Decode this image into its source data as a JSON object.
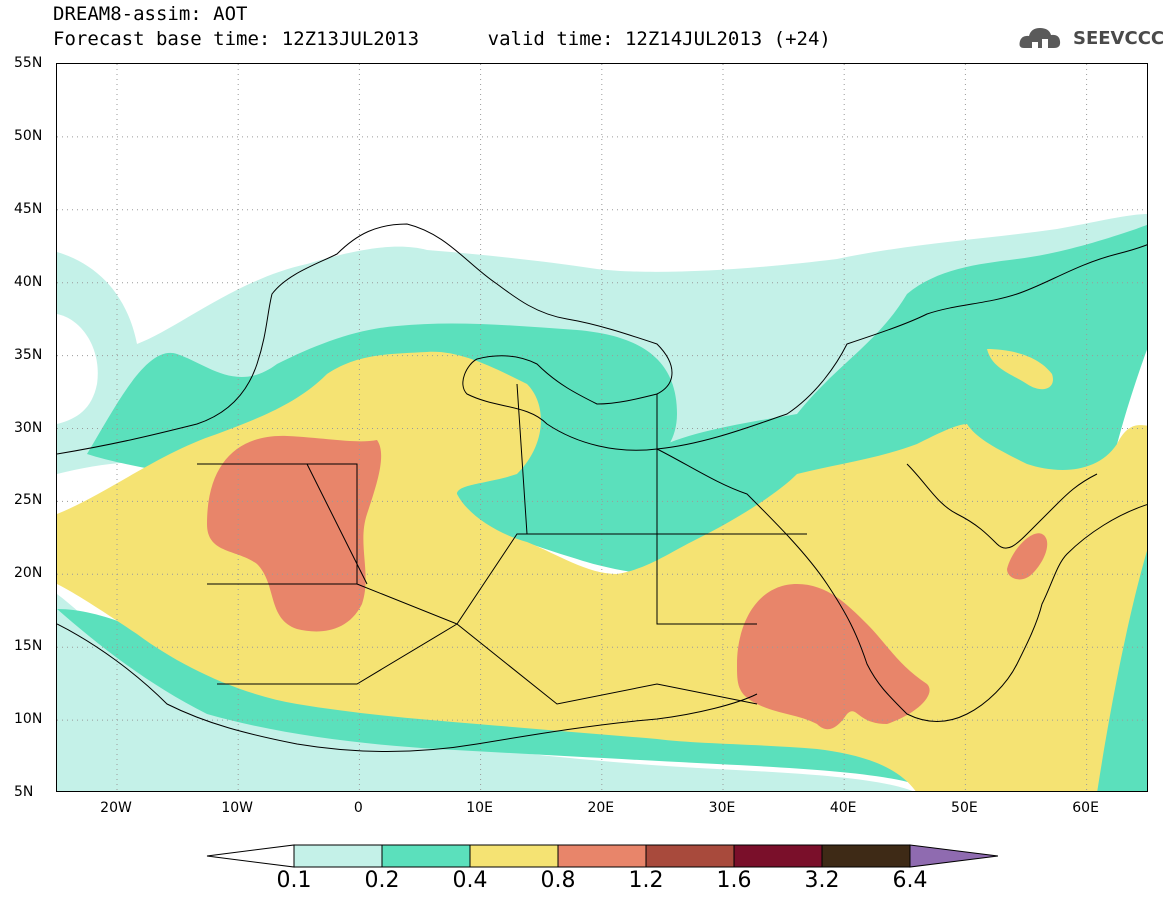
{
  "header": {
    "line1": "DREAM8-assim: AOT",
    "line2": "Forecast base time: 12Z13JUL2013      valid time: 12Z14JUL2013 (+24)",
    "logo_text": "SEEVCCC",
    "logo_icon": "cloud-icon"
  },
  "axes": {
    "lat_labels": [
      "55N",
      "50N",
      "45N",
      "40N",
      "35N",
      "30N",
      "25N",
      "20N",
      "15N",
      "10N",
      "5N"
    ],
    "lon_labels": [
      "20W",
      "10W",
      "0",
      "10E",
      "20E",
      "30E",
      "40E",
      "50E",
      "60E"
    ]
  },
  "legend": {
    "labels": [
      "0.1",
      "0.2",
      "0.4",
      "0.8",
      "1.2",
      "1.6",
      "3.2",
      "6.4"
    ],
    "colors": [
      "#ffffff",
      "#c4f1e8",
      "#5be0bc",
      "#f5e373",
      "#e8856a",
      "#a84a3c",
      "#7a0f2a",
      "#3e2a16",
      "#8f6bb0"
    ]
  },
  "colors": {
    "c01": "#c4f1e8",
    "c02": "#5be0bc",
    "c04": "#f5e373",
    "c08": "#e8856a"
  }
}
